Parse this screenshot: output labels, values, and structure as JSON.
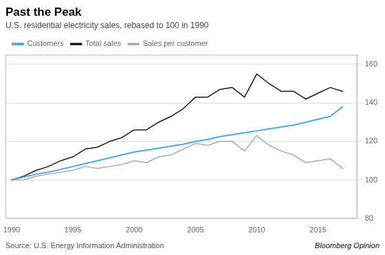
{
  "chart_data": {
    "type": "line",
    "title": "Past the Peak",
    "subtitle": "U.S. residential electricity sales, rebased to 100 in 1990",
    "source": "Source: U.S. Energy Information Administration",
    "watermark": "Bloomberg Opinion",
    "x": [
      1990,
      1991,
      1992,
      1993,
      1994,
      1995,
      1996,
      1997,
      1998,
      1999,
      2000,
      2001,
      2002,
      2003,
      2004,
      2005,
      2006,
      2007,
      2008,
      2009,
      2010,
      2011,
      2012,
      2013,
      2014,
      2015,
      2016,
      2017
    ],
    "series": [
      {
        "name": "Customers",
        "color": "#4da6e8",
        "values": [
          100,
          101.5,
          103,
          104,
          105.5,
          107,
          108.5,
          110,
          111.5,
          113,
          114.5,
          115.5,
          116.5,
          117.5,
          118.5,
          120,
          121,
          122.5,
          123.5,
          124.5,
          125.5,
          126.5,
          127.5,
          128.5,
          130,
          131.5,
          133,
          138
        ]
      },
      {
        "name": "Total sales",
        "color": "#1a1a1a",
        "values": [
          100,
          102,
          105,
          107,
          110,
          112,
          116,
          117,
          120,
          122,
          126,
          126,
          130,
          133,
          137,
          143,
          143,
          147,
          148,
          143,
          155,
          150,
          146,
          146,
          142,
          145,
          148,
          146
        ]
      },
      {
        "name": "Sales per customer",
        "color": "#aaaaaa",
        "values": [
          100,
          100,
          102,
          103,
          104,
          105,
          107,
          106,
          107,
          108,
          110,
          109,
          112,
          113,
          116,
          119,
          118,
          120,
          120,
          115,
          123,
          118,
          115,
          113,
          109,
          110,
          111,
          106
        ]
      }
    ],
    "xlim": [
      1989.5,
      2018.2
    ],
    "xticks": [
      1990,
      1995,
      2000,
      2005,
      2010,
      2015
    ],
    "ylim": [
      80,
      165
    ],
    "yticks": [
      80,
      100,
      120,
      140,
      160
    ],
    "grid": true,
    "legend": "top-left"
  }
}
